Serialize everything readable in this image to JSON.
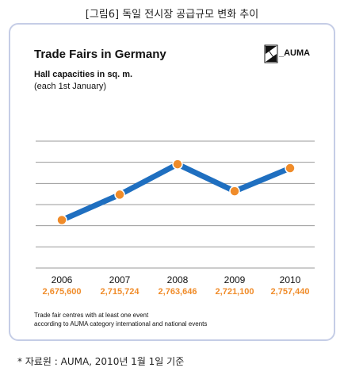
{
  "figure_caption": "[그림6] 독일 전시장 공급규모 변화 추이",
  "logo_text": "_AUMA",
  "source_note": "* 자료원 : AUMA, 2010년 1월 1일 기준",
  "chart_data": {
    "type": "line",
    "title": "Trade Fairs in Germany",
    "subtitle": "Hall capacities in sq. m.",
    "subtitle2": "(each 1st January)",
    "categories": [
      "2006",
      "2007",
      "2008",
      "2009",
      "2010"
    ],
    "value_labels": [
      "2,675,600",
      "2,715,724",
      "2,763,646",
      "2,721,100",
      "2,757,440"
    ],
    "series": [
      {
        "values": [
          2675600,
          2715724,
          2763646,
          2721100,
          2757440
        ]
      }
    ],
    "ylim": [
      2600000,
      2800000
    ],
    "grid": true,
    "notes": [
      "Trade fair centres with at least one event",
      "according to AUMA category international and national events"
    ],
    "colors": {
      "line": "#1f6fc0",
      "marker": "#f08c2a",
      "value_text": "#f08c2a",
      "grid": "#999999"
    }
  }
}
